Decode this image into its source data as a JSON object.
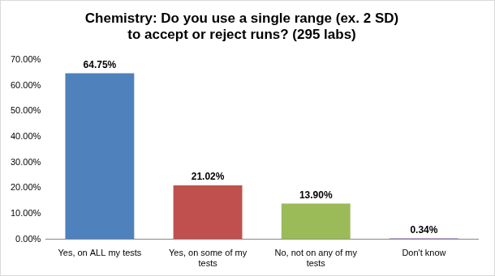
{
  "chart_data": {
    "type": "bar",
    "title": "Chemistry: Do you use a single range (ex. 2 SD) to accept or reject runs? (295 labs)",
    "categories": [
      "Yes, on ALL my tests",
      "Yes, on some of my tests",
      "No, not on any of my tests",
      "Don't know"
    ],
    "values": [
      64.75,
      21.02,
      13.9,
      0.34
    ],
    "value_labels": [
      "64.75%",
      "21.02%",
      "13.90%",
      "0.34%"
    ],
    "colors": [
      "#4f81bd",
      "#c0504d",
      "#9bbb59",
      "#8064a2"
    ],
    "ylim": [
      0,
      70
    ],
    "yticks": [
      {
        "value": 0,
        "label": "0.00%"
      },
      {
        "value": 10,
        "label": "10.00%"
      },
      {
        "value": 20,
        "label": "20.00%"
      },
      {
        "value": 30,
        "label": "30.00%"
      },
      {
        "value": 40,
        "label": "40.00%"
      },
      {
        "value": 50,
        "label": "50.00%"
      },
      {
        "value": 60,
        "label": "60.00%"
      },
      {
        "value": 70,
        "label": "70.00%"
      }
    ],
    "grid": false,
    "data_labels": true
  }
}
